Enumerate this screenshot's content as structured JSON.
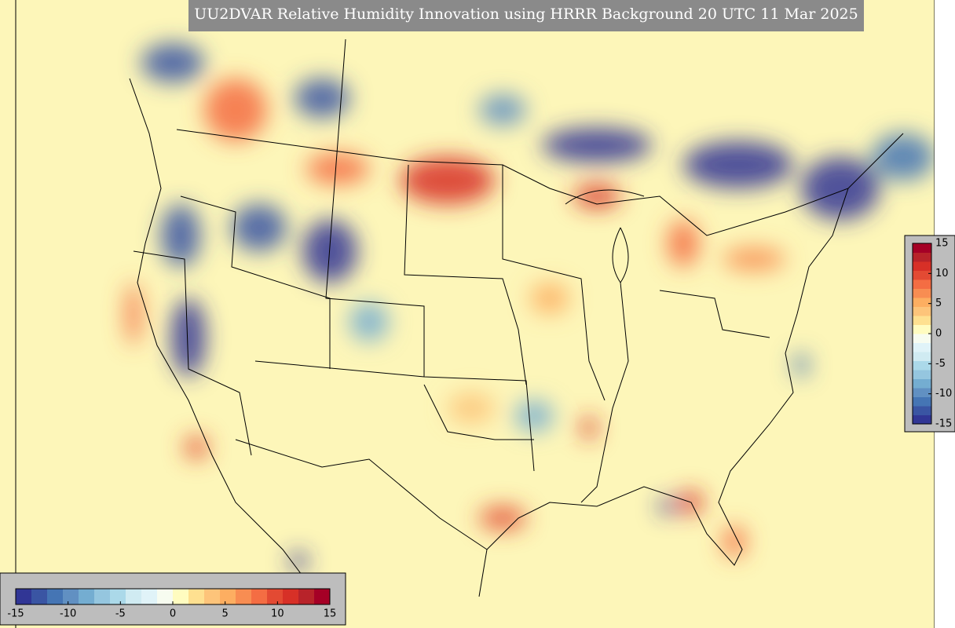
{
  "title": "UU2DVAR Relative Humidity Innovation using HRRR Background 20 UTC 11 Mar 2025",
  "colorbar": {
    "range": [
      -15,
      15
    ],
    "ticks": [
      -15,
      -10,
      -5,
      0,
      5,
      10,
      15
    ],
    "colors": [
      "#313695",
      "#3a55a3",
      "#4575b4",
      "#6190c2",
      "#74add1",
      "#95c6df",
      "#abd9e9",
      "#d0ebf2",
      "#e0f3f8",
      "#f7fcf0",
      "#fffcc0",
      "#fee090",
      "#fdc47a",
      "#fdae61",
      "#f88d52",
      "#f46d43",
      "#e34a33",
      "#d73027",
      "#b8232a",
      "#a50026"
    ]
  }
}
